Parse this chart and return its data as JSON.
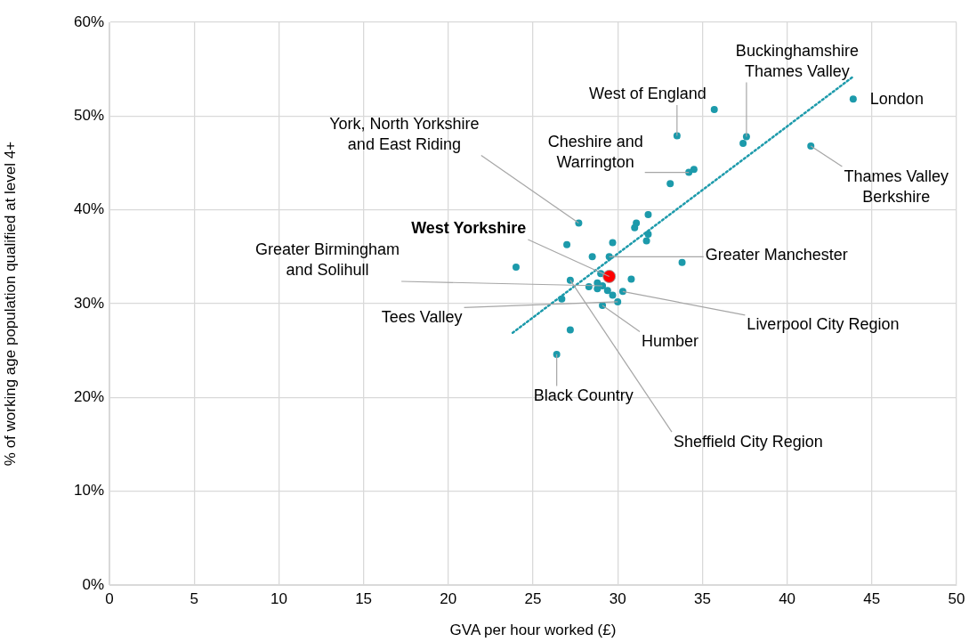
{
  "chart_data": {
    "type": "scatter",
    "xlabel": "GVA per hour worked (£)",
    "ylabel": "% of working age population qualified at level 4+",
    "xlim": [
      0,
      50
    ],
    "xticks": [
      0,
      5,
      10,
      15,
      20,
      25,
      30,
      35,
      40,
      45,
      50
    ],
    "ylim": [
      0,
      60
    ],
    "yticks": [
      {
        "value": 0,
        "label": "0%"
      },
      {
        "value": 10,
        "label": "10%"
      },
      {
        "value": 20,
        "label": "20%"
      },
      {
        "value": 30,
        "label": "30%"
      },
      {
        "value": 40,
        "label": "40%"
      },
      {
        "value": 50,
        "label": "50%"
      },
      {
        "value": 60,
        "label": "60%"
      }
    ],
    "grid": true,
    "legend": false,
    "marker": "circle",
    "series": [
      {
        "color": "#1c9aab",
        "x": [
          27.7,
          31.8,
          31.1,
          31.0,
          31.8,
          31.7,
          29.7,
          27.0,
          28.5,
          29.5,
          33.8,
          24.0,
          29.0,
          30.8,
          27.2,
          28.8,
          28.3,
          28.8,
          29.1,
          29.4,
          30.3,
          29.7,
          26.7,
          30.0,
          29.1,
          27.2,
          26.4,
          35.7,
          33.5,
          37.6,
          37.4,
          43.9,
          41.4,
          34.5,
          34.2,
          33.1
        ],
        "values": [
          38.6,
          39.5,
          38.6,
          38.1,
          37.4,
          36.7,
          36.5,
          36.3,
          35.0,
          35.0,
          34.4,
          33.9,
          33.2,
          32.6,
          32.5,
          32.2,
          31.8,
          31.6,
          31.9,
          31.4,
          31.3,
          30.9,
          30.5,
          30.2,
          29.8,
          27.2,
          24.6,
          50.7,
          47.9,
          47.8,
          47.1,
          51.8,
          46.8,
          44.3,
          44.0,
          42.8
        ]
      },
      {
        "color": "#ff0000",
        "x": [
          29.5
        ],
        "values": [
          32.9
        ]
      },
      {
        "type": "line",
        "color": "#1c9aab",
        "line_style": "dotted",
        "marker": "none",
        "x": [
          23.8,
          43.9
        ],
        "values": [
          26.9,
          54.2
        ]
      }
    ],
    "annotations": [
      {
        "text": "West of England",
        "x": 33.5,
        "y": 47.9
      },
      {
        "text": "Buckinghamshire Thames Valley",
        "x": 37.6,
        "y": 47.8
      },
      {
        "text": "London",
        "x": 43.9,
        "y": 51.8
      },
      {
        "text": "York, North Yorkshire and East Riding",
        "x": 27.7,
        "y": 38.6
      },
      {
        "text": "Cheshire and Warrington",
        "x": 34.2,
        "y": 44.0
      },
      {
        "text": "Thames Valley Berkshire",
        "x": 41.4,
        "y": 46.8
      },
      {
        "text": "West Yorkshire",
        "x": 29.5,
        "y": 32.9
      },
      {
        "text": "Greater Manchester",
        "x": 29.5,
        "y": 35.0
      },
      {
        "text": "Greater Birmingham and Solihull",
        "x": 29.1,
        "y": 31.9
      },
      {
        "text": "Tees Valley",
        "x": 30.0,
        "y": 30.2
      },
      {
        "text": "Liverpool City Region",
        "x": 30.3,
        "y": 31.3
      },
      {
        "text": "Humber",
        "x": 29.1,
        "y": 29.8
      },
      {
        "text": "Black Country",
        "x": 26.4,
        "y": 24.6
      },
      {
        "text": "Sheffield City Region",
        "x": 27.2,
        "y": 32.5
      }
    ]
  }
}
